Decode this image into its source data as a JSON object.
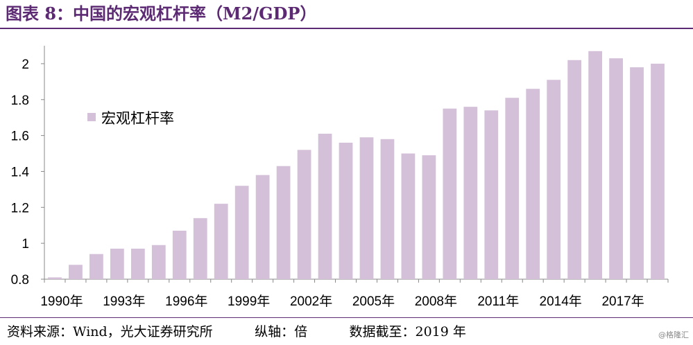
{
  "figure": {
    "title": "图表 8：中国的宏观杠杆率（M2/GDP）"
  },
  "footer": {
    "source": "资料来源：Wind，光大证券研究所",
    "axis_note": "纵轴：倍",
    "date_note": "数据截至：2019 年"
  },
  "watermark": "@格隆汇",
  "colors": {
    "bar": "#d4c1d9",
    "title": "#5c2a73",
    "rule": "#5c2a73"
  },
  "chart_data": {
    "type": "bar",
    "title": "",
    "xlabel": "",
    "ylabel": "",
    "ylim": [
      0.8,
      2.1
    ],
    "yticks": [
      0.8,
      1,
      1.2,
      1.4,
      1.6,
      1.8,
      2
    ],
    "ytick_labels": [
      "0.8",
      "1",
      "1.2",
      "1.4",
      "1.6",
      "1.8",
      "2"
    ],
    "categories": [
      "1990",
      "1991",
      "1992",
      "1993",
      "1994",
      "1995",
      "1996",
      "1997",
      "1998",
      "1999",
      "2000",
      "2001",
      "2002",
      "2003",
      "2004",
      "2005",
      "2006",
      "2007",
      "2008",
      "2009",
      "2010",
      "2011",
      "2012",
      "2013",
      "2014",
      "2015",
      "2016",
      "2017",
      "2018",
      "2019"
    ],
    "xtick_labels": [
      "1990年",
      "1993年",
      "1996年",
      "1999年",
      "2002年",
      "2005年",
      "2008年",
      "2011年",
      "2014年",
      "2017年"
    ],
    "xtick_index": [
      0,
      3,
      6,
      9,
      12,
      15,
      18,
      21,
      24,
      27
    ],
    "series": [
      {
        "name": "宏观杠杆率",
        "values": [
          0.81,
          0.88,
          0.94,
          0.97,
          0.97,
          0.99,
          1.07,
          1.14,
          1.22,
          1.32,
          1.38,
          1.43,
          1.52,
          1.61,
          1.56,
          1.59,
          1.58,
          1.5,
          1.49,
          1.75,
          1.76,
          1.74,
          1.81,
          1.86,
          1.91,
          2.02,
          2.07,
          2.03,
          1.98,
          2.0
        ]
      }
    ],
    "legend_position": "upper-left",
    "grid": false
  }
}
